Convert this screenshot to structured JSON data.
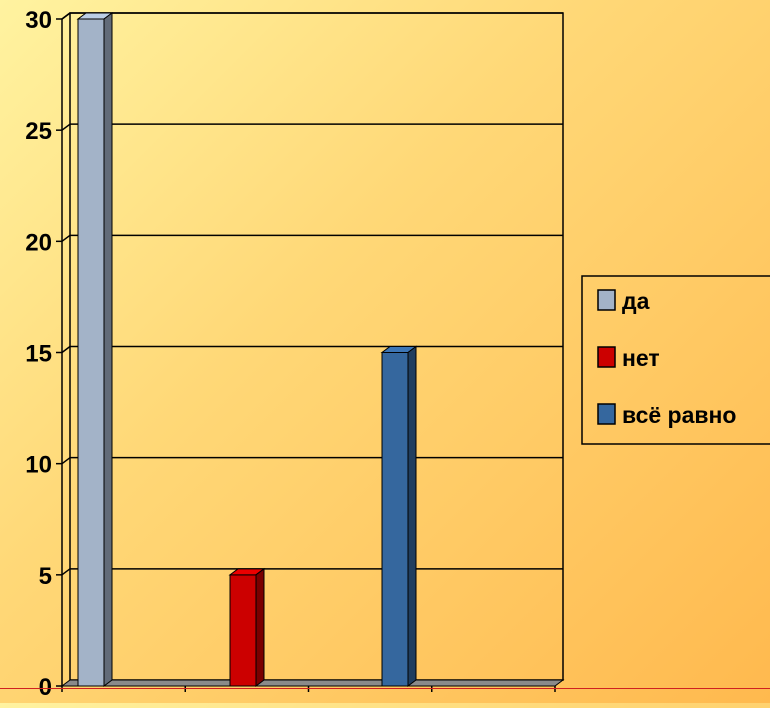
{
  "chart_data": {
    "type": "bar",
    "categories": [
      "",
      "",
      ""
    ],
    "series": [
      {
        "name": "да",
        "values": [
          30,
          0,
          0
        ],
        "color": "#a3b3c8"
      },
      {
        "name": "нет",
        "values": [
          0,
          5,
          0
        ],
        "color": "#cc0000"
      },
      {
        "name": "всё равно",
        "values": [
          0,
          0,
          15
        ],
        "color": "#35679e"
      }
    ],
    "y_ticks": [
      "0",
      "5",
      "10",
      "15",
      "20",
      "25",
      "30"
    ],
    "ylim": [
      0,
      30
    ],
    "grid": true,
    "legend_position": "right",
    "title": "",
    "xlabel": "",
    "ylabel": ""
  }
}
